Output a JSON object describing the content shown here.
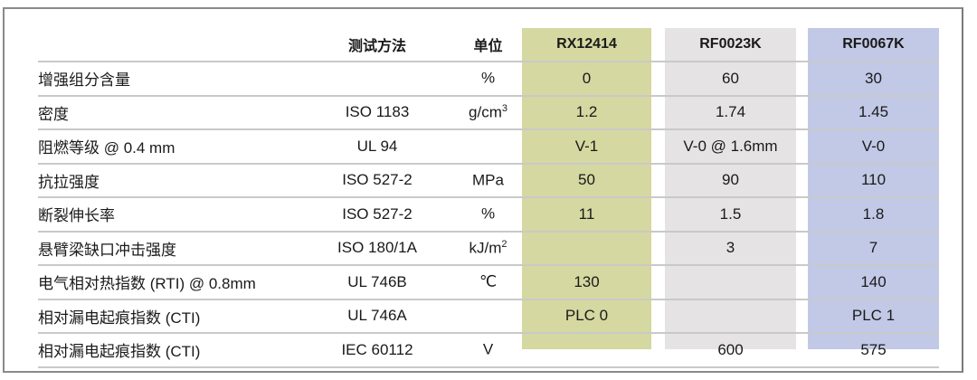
{
  "columns": {
    "name": "",
    "method": "测试方法",
    "unit": "单位",
    "products": [
      "RX12414",
      "RF0023K",
      "RF0067K"
    ]
  },
  "colors": {
    "RX12414": "#d5d8a0",
    "RF0023K": "#e5e3e3",
    "RF0067K": "#c2c9e6"
  },
  "rows": [
    {
      "name": "增强组分含量",
      "method": "",
      "unit": "%",
      "unit_sup": "",
      "values": [
        "0",
        "60",
        "30"
      ]
    },
    {
      "name": "密度",
      "method": "ISO 1183",
      "unit": "g/cm",
      "unit_sup": "3",
      "values": [
        "1.2",
        "1.74",
        "1.45"
      ]
    },
    {
      "name": "阻燃等级 @ 0.4 mm",
      "method": "UL 94",
      "unit": "",
      "unit_sup": "",
      "values": [
        "V-1",
        "V-0 @ 1.6mm",
        "V-0"
      ]
    },
    {
      "name": "抗拉强度",
      "method": "ISO 527-2",
      "unit": "MPa",
      "unit_sup": "",
      "values": [
        "50",
        "90",
        "110"
      ]
    },
    {
      "name": "断裂伸长率",
      "method": "ISO 527-2",
      "unit": "%",
      "unit_sup": "",
      "values": [
        "11",
        "1.5",
        "1.8"
      ]
    },
    {
      "name": "悬臂梁缺口冲击强度",
      "method": "ISO 180/1A",
      "unit": "kJ/m",
      "unit_sup": "2",
      "values": [
        "",
        "3",
        "7"
      ]
    },
    {
      "name": "电气相对热指数 (RTI) @ 0.8mm",
      "method": "UL 746B",
      "unit": "℃",
      "unit_sup": "",
      "values": [
        "130",
        "",
        "140"
      ]
    },
    {
      "name": "相对漏电起痕指数 (CTI)",
      "method": "UL 746A",
      "unit": "",
      "unit_sup": "",
      "values": [
        "PLC 0",
        "",
        "PLC 1"
      ]
    },
    {
      "name": "相对漏电起痕指数 (CTI)",
      "method": "IEC 60112",
      "unit": "V",
      "unit_sup": "",
      "values": [
        "",
        "600",
        "575"
      ]
    }
  ]
}
